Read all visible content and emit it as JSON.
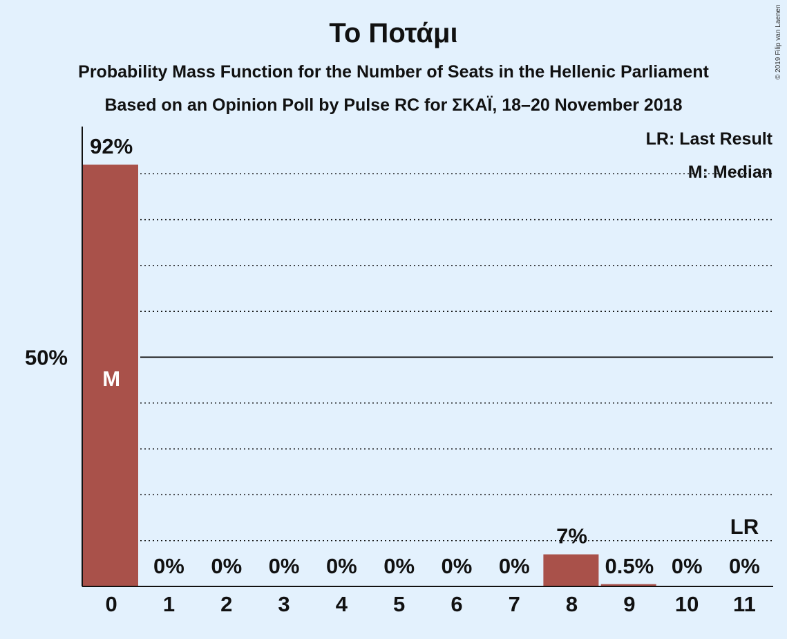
{
  "title": "Το Ποτάμι",
  "subtitle_1": "Probability Mass Function for the Number of Seats in the Hellenic Parliament",
  "subtitle_2": "Based on an Opinion Poll by Pulse RC for ΣΚΑΪ, 18–20 November 2018",
  "copyright": "© 2019 Filip van Laenen",
  "legend": {
    "last_result": "LR: Last Result",
    "median": "M: Median"
  },
  "colors": {
    "background": "#e3f1fd",
    "bar": "#a9514a",
    "text": "#111111"
  },
  "chart_data": {
    "type": "bar",
    "categories": [
      "0",
      "1",
      "2",
      "3",
      "4",
      "5",
      "6",
      "7",
      "8",
      "9",
      "10",
      "11"
    ],
    "values": [
      92,
      0,
      0,
      0,
      0,
      0,
      0,
      0,
      7,
      0.5,
      0,
      0
    ],
    "value_labels": [
      "92%",
      "0%",
      "0%",
      "0%",
      "0%",
      "0%",
      "0%",
      "0%",
      "7%",
      "0.5%",
      "0%",
      "0%"
    ],
    "ylim": [
      0,
      100
    ],
    "y_tick_labels": [
      {
        "value": 50,
        "label": "50%"
      }
    ],
    "gridlines_dotted": [
      10,
      20,
      30,
      40,
      60,
      70,
      80,
      90
    ],
    "gridline_solid": 50,
    "median_category": "0",
    "median_marker": "M",
    "last_result_category": "11",
    "last_result_marker": "LR",
    "legend_position": "top-right"
  }
}
